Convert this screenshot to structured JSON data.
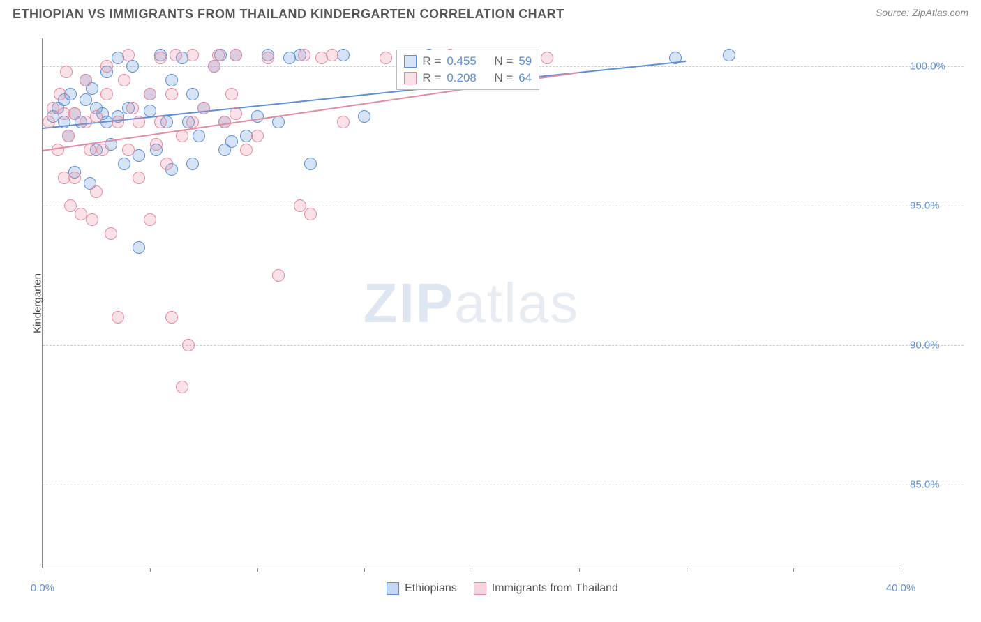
{
  "header": {
    "title": "ETHIOPIAN VS IMMIGRANTS FROM THAILAND KINDERGARTEN CORRELATION CHART",
    "source": "Source: ZipAtlas.com"
  },
  "chart": {
    "type": "scatter",
    "ylabel": "Kindergarten",
    "background_color": "#ffffff",
    "grid_color": "#cccccc",
    "axis_color": "#888888",
    "label_color": "#5b8fd6",
    "label_fontsize": 15,
    "xlim": [
      0,
      40
    ],
    "ylim": [
      82,
      101
    ],
    "x_ticks": [
      0,
      5,
      10,
      15,
      20,
      25,
      30,
      35,
      40
    ],
    "x_tick_labels": {
      "0": "0.0%",
      "40": "40.0%"
    },
    "y_ticks": [
      85,
      90,
      95,
      100
    ],
    "y_tick_labels": {
      "85": "85.0%",
      "90": "90.0%",
      "95": "95.0%",
      "100": "100.0%"
    },
    "marker_radius": 9,
    "marker_fill_opacity": 0.25,
    "watermark": "ZIPatlas",
    "series": [
      {
        "name": "Ethiopians",
        "color": "#5b8fd6",
        "fill": "rgba(91,143,214,0.25)",
        "R": "0.455",
        "N": "59",
        "trend": {
          "x1": 0,
          "y1": 97.8,
          "x2": 30,
          "y2": 100.2
        },
        "points": [
          [
            0.5,
            98.2
          ],
          [
            0.7,
            98.5
          ],
          [
            1.0,
            98.0
          ],
          [
            1.0,
            98.8
          ],
          [
            1.2,
            97.5
          ],
          [
            1.3,
            99.0
          ],
          [
            1.5,
            98.3
          ],
          [
            1.5,
            96.2
          ],
          [
            1.8,
            98.0
          ],
          [
            2.0,
            99.5
          ],
          [
            2.0,
            98.8
          ],
          [
            2.2,
            95.8
          ],
          [
            2.3,
            99.2
          ],
          [
            2.5,
            98.5
          ],
          [
            2.5,
            97.0
          ],
          [
            2.8,
            98.3
          ],
          [
            3.0,
            99.8
          ],
          [
            3.0,
            98.0
          ],
          [
            3.2,
            97.2
          ],
          [
            3.5,
            98.2
          ],
          [
            3.5,
            100.3
          ],
          [
            3.8,
            96.5
          ],
          [
            4.0,
            98.5
          ],
          [
            4.2,
            100.0
          ],
          [
            4.5,
            96.8
          ],
          [
            4.5,
            93.5
          ],
          [
            5.0,
            98.4
          ],
          [
            5.0,
            99.0
          ],
          [
            5.3,
            97.0
          ],
          [
            5.5,
            100.4
          ],
          [
            5.8,
            98.0
          ],
          [
            6.0,
            99.5
          ],
          [
            6.0,
            96.3
          ],
          [
            6.5,
            100.3
          ],
          [
            6.8,
            98.0
          ],
          [
            7.0,
            99.0
          ],
          [
            7.0,
            96.5
          ],
          [
            7.3,
            97.5
          ],
          [
            7.5,
            98.5
          ],
          [
            8.0,
            100.0
          ],
          [
            8.3,
            100.4
          ],
          [
            8.5,
            97.0
          ],
          [
            8.5,
            98.0
          ],
          [
            8.8,
            97.3
          ],
          [
            9.0,
            100.4
          ],
          [
            9.5,
            97.5
          ],
          [
            10.0,
            98.2
          ],
          [
            10.5,
            100.4
          ],
          [
            11.0,
            98.0
          ],
          [
            11.5,
            100.3
          ],
          [
            12.0,
            100.4
          ],
          [
            12.5,
            96.5
          ],
          [
            14.0,
            100.4
          ],
          [
            15.0,
            98.2
          ],
          [
            18.0,
            100.4
          ],
          [
            20.0,
            100.3
          ],
          [
            22.0,
            100.0
          ],
          [
            29.5,
            100.3
          ],
          [
            32.0,
            100.4
          ]
        ]
      },
      {
        "name": "Immigrants from Thailand",
        "color": "#e48aa0",
        "fill": "rgba(228,138,160,0.25)",
        "R": "0.208",
        "N": "64",
        "trend": {
          "x1": 0,
          "y1": 97.0,
          "x2": 25,
          "y2": 99.8
        },
        "points": [
          [
            0.3,
            98.0
          ],
          [
            0.5,
            98.5
          ],
          [
            0.7,
            97.0
          ],
          [
            0.8,
            99.0
          ],
          [
            1.0,
            96.0
          ],
          [
            1.0,
            98.3
          ],
          [
            1.1,
            99.8
          ],
          [
            1.2,
            97.5
          ],
          [
            1.3,
            95.0
          ],
          [
            1.5,
            98.3
          ],
          [
            1.5,
            96.0
          ],
          [
            1.8,
            94.7
          ],
          [
            2.0,
            98.0
          ],
          [
            2.0,
            99.5
          ],
          [
            2.2,
            97.0
          ],
          [
            2.3,
            94.5
          ],
          [
            2.5,
            98.2
          ],
          [
            2.5,
            95.5
          ],
          [
            2.8,
            97.0
          ],
          [
            3.0,
            100.0
          ],
          [
            3.0,
            99.0
          ],
          [
            3.2,
            94.0
          ],
          [
            3.5,
            98.0
          ],
          [
            3.5,
            91.0
          ],
          [
            3.8,
            99.5
          ],
          [
            4.0,
            97.0
          ],
          [
            4.0,
            100.4
          ],
          [
            4.2,
            98.5
          ],
          [
            4.5,
            98.0
          ],
          [
            4.5,
            96.0
          ],
          [
            5.0,
            94.5
          ],
          [
            5.0,
            99.0
          ],
          [
            5.3,
            97.2
          ],
          [
            5.5,
            100.3
          ],
          [
            5.5,
            98.0
          ],
          [
            5.8,
            96.5
          ],
          [
            6.0,
            91.0
          ],
          [
            6.0,
            99.0
          ],
          [
            6.2,
            100.4
          ],
          [
            6.5,
            97.5
          ],
          [
            6.5,
            88.5
          ],
          [
            6.8,
            90.0
          ],
          [
            7.0,
            100.4
          ],
          [
            7.0,
            98.0
          ],
          [
            7.5,
            98.5
          ],
          [
            8.0,
            100.0
          ],
          [
            8.2,
            100.4
          ],
          [
            8.5,
            98.0
          ],
          [
            8.8,
            99.0
          ],
          [
            9.0,
            98.3
          ],
          [
            9.0,
            100.4
          ],
          [
            9.5,
            97.0
          ],
          [
            10.0,
            97.5
          ],
          [
            10.5,
            100.3
          ],
          [
            11.0,
            92.5
          ],
          [
            12.0,
            95.0
          ],
          [
            12.2,
            100.4
          ],
          [
            12.5,
            94.7
          ],
          [
            13.0,
            100.3
          ],
          [
            13.5,
            100.4
          ],
          [
            14.0,
            98.0
          ],
          [
            16.0,
            100.3
          ],
          [
            19.0,
            100.4
          ],
          [
            23.5,
            100.3
          ]
        ]
      }
    ],
    "legend": {
      "items": [
        {
          "label": "Ethiopians",
          "color": "#5b8fd6",
          "fill": "rgba(91,143,214,0.35)"
        },
        {
          "label": "Immigrants from Thailand",
          "color": "#e48aa0",
          "fill": "rgba(228,138,160,0.35)"
        }
      ]
    }
  }
}
